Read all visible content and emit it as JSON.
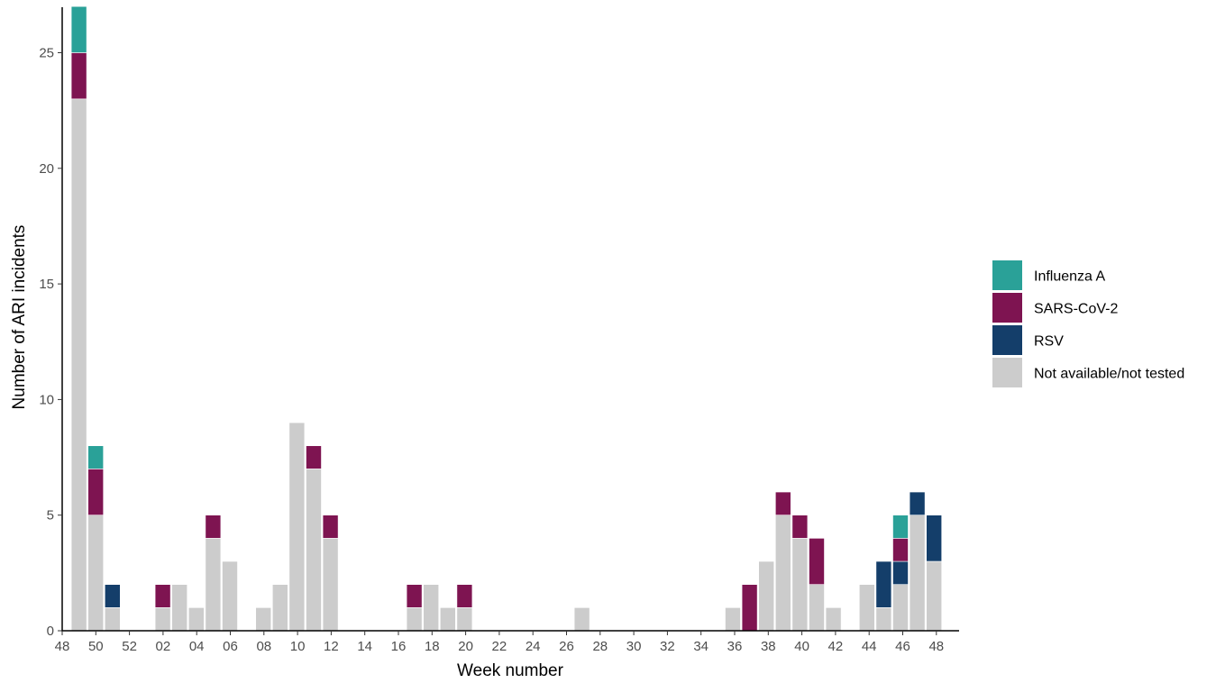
{
  "chart_data": {
    "type": "bar",
    "stacked": true,
    "xlabel": "Week number",
    "ylabel": "Number of ARI incidents",
    "ylim": [
      0,
      27
    ],
    "yticks": [
      0,
      5,
      10,
      15,
      20,
      25
    ],
    "grid": false,
    "legend_position": "right",
    "x_tick_labels": [
      "48",
      "50",
      "52",
      "02",
      "04",
      "06",
      "08",
      "10",
      "12",
      "14",
      "16",
      "18",
      "20",
      "22",
      "24",
      "26",
      "28",
      "30",
      "32",
      "34",
      "36",
      "38",
      "40",
      "42",
      "44",
      "46",
      "48"
    ],
    "categories": [
      "49",
      "50",
      "51",
      "52",
      "01",
      "02",
      "03",
      "04",
      "05",
      "06",
      "07",
      "08",
      "09",
      "10",
      "11",
      "12",
      "13",
      "14",
      "15",
      "16",
      "17",
      "18",
      "19",
      "20",
      "21",
      "22",
      "23",
      "24",
      "25",
      "26",
      "27",
      "28",
      "29",
      "30",
      "31",
      "32",
      "33",
      "34",
      "35",
      "36",
      "37",
      "38",
      "39",
      "40",
      "41",
      "42",
      "43",
      "44",
      "45",
      "46",
      "47",
      "48"
    ],
    "series": [
      {
        "name": "Not available/not tested",
        "color": "#cccccc",
        "values": [
          23,
          5,
          1,
          0,
          0,
          1,
          2,
          1,
          4,
          3,
          0,
          1,
          2,
          9,
          7,
          4,
          0,
          0,
          0,
          0,
          1,
          2,
          1,
          1,
          0,
          0,
          0,
          0,
          0,
          0,
          1,
          0,
          0,
          0,
          0,
          0,
          0,
          0,
          0,
          1,
          0,
          3,
          5,
          4,
          2,
          1,
          0,
          2,
          1,
          2,
          5,
          3
        ]
      },
      {
        "name": "RSV",
        "color": "#143e6a",
        "values": [
          0,
          0,
          1,
          0,
          0,
          0,
          0,
          0,
          0,
          0,
          0,
          0,
          0,
          0,
          0,
          0,
          0,
          0,
          0,
          0,
          0,
          0,
          0,
          0,
          0,
          0,
          0,
          0,
          0,
          0,
          0,
          0,
          0,
          0,
          0,
          0,
          0,
          0,
          0,
          0,
          0,
          0,
          0,
          0,
          0,
          0,
          0,
          0,
          2,
          1,
          1,
          2
        ]
      },
      {
        "name": "SARS-CoV-2",
        "color": "#7e1451",
        "values": [
          2,
          2,
          0,
          0,
          0,
          1,
          0,
          0,
          1,
          0,
          0,
          0,
          0,
          0,
          1,
          1,
          0,
          0,
          0,
          0,
          1,
          0,
          0,
          1,
          0,
          0,
          0,
          0,
          0,
          0,
          0,
          0,
          0,
          0,
          0,
          0,
          0,
          0,
          0,
          0,
          2,
          0,
          1,
          1,
          2,
          0,
          0,
          0,
          0,
          1,
          0,
          0
        ]
      },
      {
        "name": "Influenza A",
        "color": "#2aa198",
        "values": [
          2,
          1,
          0,
          0,
          0,
          0,
          0,
          0,
          0,
          0,
          0,
          0,
          0,
          0,
          0,
          0,
          0,
          0,
          0,
          0,
          0,
          0,
          0,
          0,
          0,
          0,
          0,
          0,
          0,
          0,
          0,
          0,
          0,
          0,
          0,
          0,
          0,
          0,
          0,
          0,
          0,
          0,
          0,
          0,
          0,
          0,
          0,
          0,
          0,
          1,
          0,
          0
        ]
      }
    ],
    "legend_order": [
      "Influenza A",
      "SARS-CoV-2",
      "RSV",
      "Not available/not tested"
    ]
  }
}
